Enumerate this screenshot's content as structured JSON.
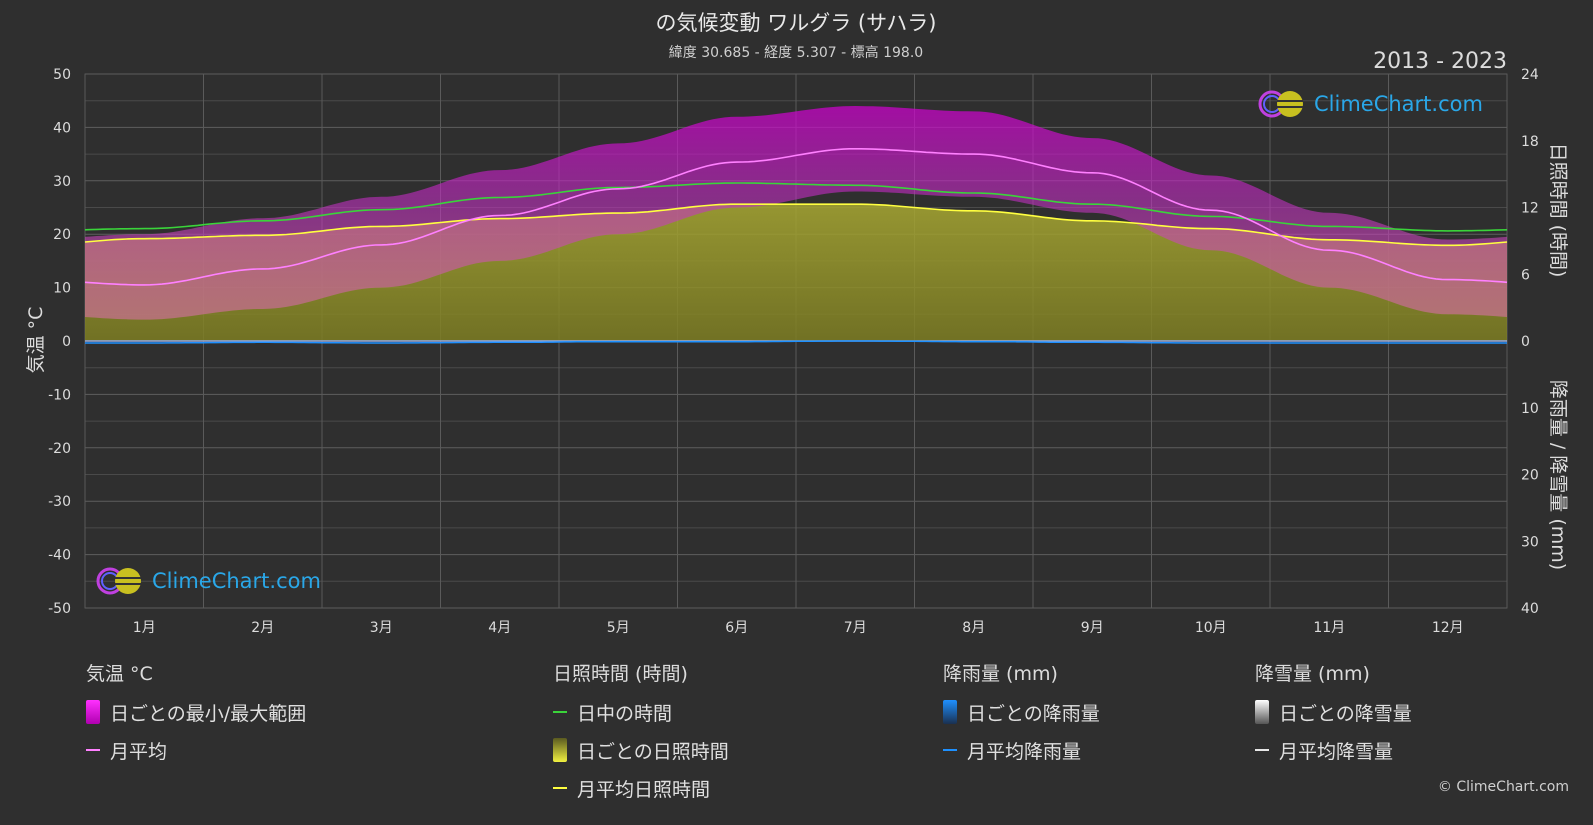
{
  "chart_data": {
    "type": "area",
    "title": "の気候変動 ワルグラ (サハラ)",
    "subtitle": "緯度 30.685 - 経度 5.307 - 標高 198.0",
    "period": "2013 - 2023",
    "categories": [
      "1月",
      "2月",
      "3月",
      "4月",
      "5月",
      "6月",
      "7月",
      "8月",
      "9月",
      "10月",
      "11月",
      "12月"
    ],
    "y_left": {
      "label": "気温 °C",
      "range": [
        -50,
        50
      ],
      "ticks": [
        50,
        40,
        30,
        20,
        10,
        0,
        -10,
        -20,
        -30,
        -40,
        -50
      ]
    },
    "y_right_top": {
      "label": "日照時間 (時間)",
      "range": [
        0,
        24
      ],
      "ticks": [
        24,
        18,
        12,
        6,
        0
      ]
    },
    "y_right_bottom": {
      "label": "降雨量 / 降雪量 (mm)",
      "range": [
        0,
        40
      ],
      "ticks": [
        10,
        20,
        30,
        40
      ]
    },
    "series": [
      {
        "name": "月平均",
        "kind": "temp_mean",
        "values": [
          10.5,
          13.5,
          18,
          23.5,
          28.5,
          33.5,
          36,
          35,
          31.5,
          24.5,
          17,
          11.5
        ]
      },
      {
        "name": "日ごとの最小/最大範囲",
        "kind": "temp_range",
        "min": [
          4,
          6,
          10,
          15,
          20,
          25,
          28,
          27,
          24,
          17,
          10,
          5
        ],
        "max": [
          20,
          23,
          27,
          32,
          37,
          42,
          44,
          43,
          38,
          31,
          24,
          19
        ]
      },
      {
        "name": "日中の時間",
        "kind": "daylight",
        "values": [
          10.1,
          10.8,
          11.8,
          12.9,
          13.8,
          14.2,
          14.0,
          13.3,
          12.3,
          11.2,
          10.3,
          9.9
        ]
      },
      {
        "name": "月平均日照時間",
        "kind": "sunshine_mean",
        "values": [
          9.2,
          9.5,
          10.3,
          11.0,
          11.5,
          12.3,
          12.3,
          11.7,
          10.8,
          10.1,
          9.1,
          8.6
        ]
      },
      {
        "name": "月平均降雨量",
        "kind": "rain_mean",
        "values": [
          0.3,
          0.2,
          0.3,
          0.2,
          0.1,
          0.1,
          0.0,
          0.1,
          0.2,
          0.3,
          0.3,
          0.3
        ]
      }
    ],
    "grid": true,
    "legend_position": "bottom"
  },
  "legend": {
    "temp": {
      "title": "気温 °C",
      "items": [
        "日ごとの最小/最大範囲",
        "月平均"
      ]
    },
    "sun": {
      "title": "日照時間 (時間)",
      "items": [
        "日中の時間",
        "日ごとの日照時間",
        "月平均日照時間"
      ]
    },
    "rain": {
      "title": "降雨量 (mm)",
      "items": [
        "日ごとの降雨量",
        "月平均降雨量"
      ]
    },
    "snow": {
      "title": "降雪量 (mm)",
      "items": [
        "日ごとの降雪量",
        "月平均降雪量"
      ]
    }
  },
  "logo_text": "ClimeChart.com",
  "copyright": "© ClimeChart.com",
  "colors": {
    "background": "#2f2f2f",
    "temp_range": "#e000e0",
    "temp_mean": "#ff80ff",
    "daylight": "#3ad43a",
    "sunshine": "#bdbd2a",
    "sunshine_mean": "#ffff40",
    "rain": "#1e90ff"
  }
}
